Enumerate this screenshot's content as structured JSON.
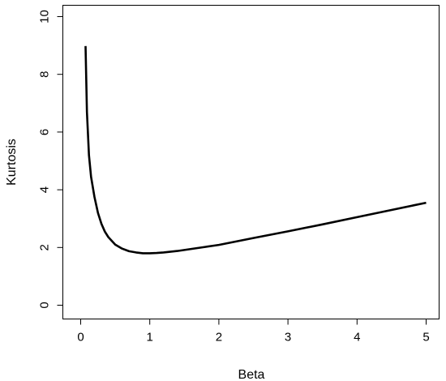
{
  "chart_data": {
    "type": "line",
    "title": "",
    "xlabel": "Beta",
    "ylabel": "Kurtosis",
    "xlim": [
      0,
      5.2
    ],
    "ylim": [
      0,
      10
    ],
    "xticks": [
      0,
      1,
      2,
      3,
      4,
      5
    ],
    "yticks": [
      0,
      2,
      4,
      6,
      8,
      10
    ],
    "grid": false,
    "box": "full",
    "series": [
      {
        "color": "#000000",
        "x": [
          0.07,
          0.09,
          0.12,
          0.15,
          0.2,
          0.25,
          0.3,
          0.35,
          0.4,
          0.5,
          0.6,
          0.7,
          0.8,
          0.9,
          1.0,
          1.1,
          1.2,
          1.4,
          1.6,
          1.8,
          2.0,
          2.5,
          3.0,
          3.5,
          4.0,
          4.5,
          5.0
        ],
        "y": [
          8.98,
          6.7,
          5.2,
          4.45,
          3.75,
          3.2,
          2.82,
          2.55,
          2.36,
          2.1,
          1.96,
          1.87,
          1.83,
          1.8,
          1.8,
          1.81,
          1.83,
          1.88,
          1.95,
          2.02,
          2.09,
          2.33,
          2.56,
          2.8,
          3.05,
          3.3,
          3.55
        ]
      }
    ]
  }
}
